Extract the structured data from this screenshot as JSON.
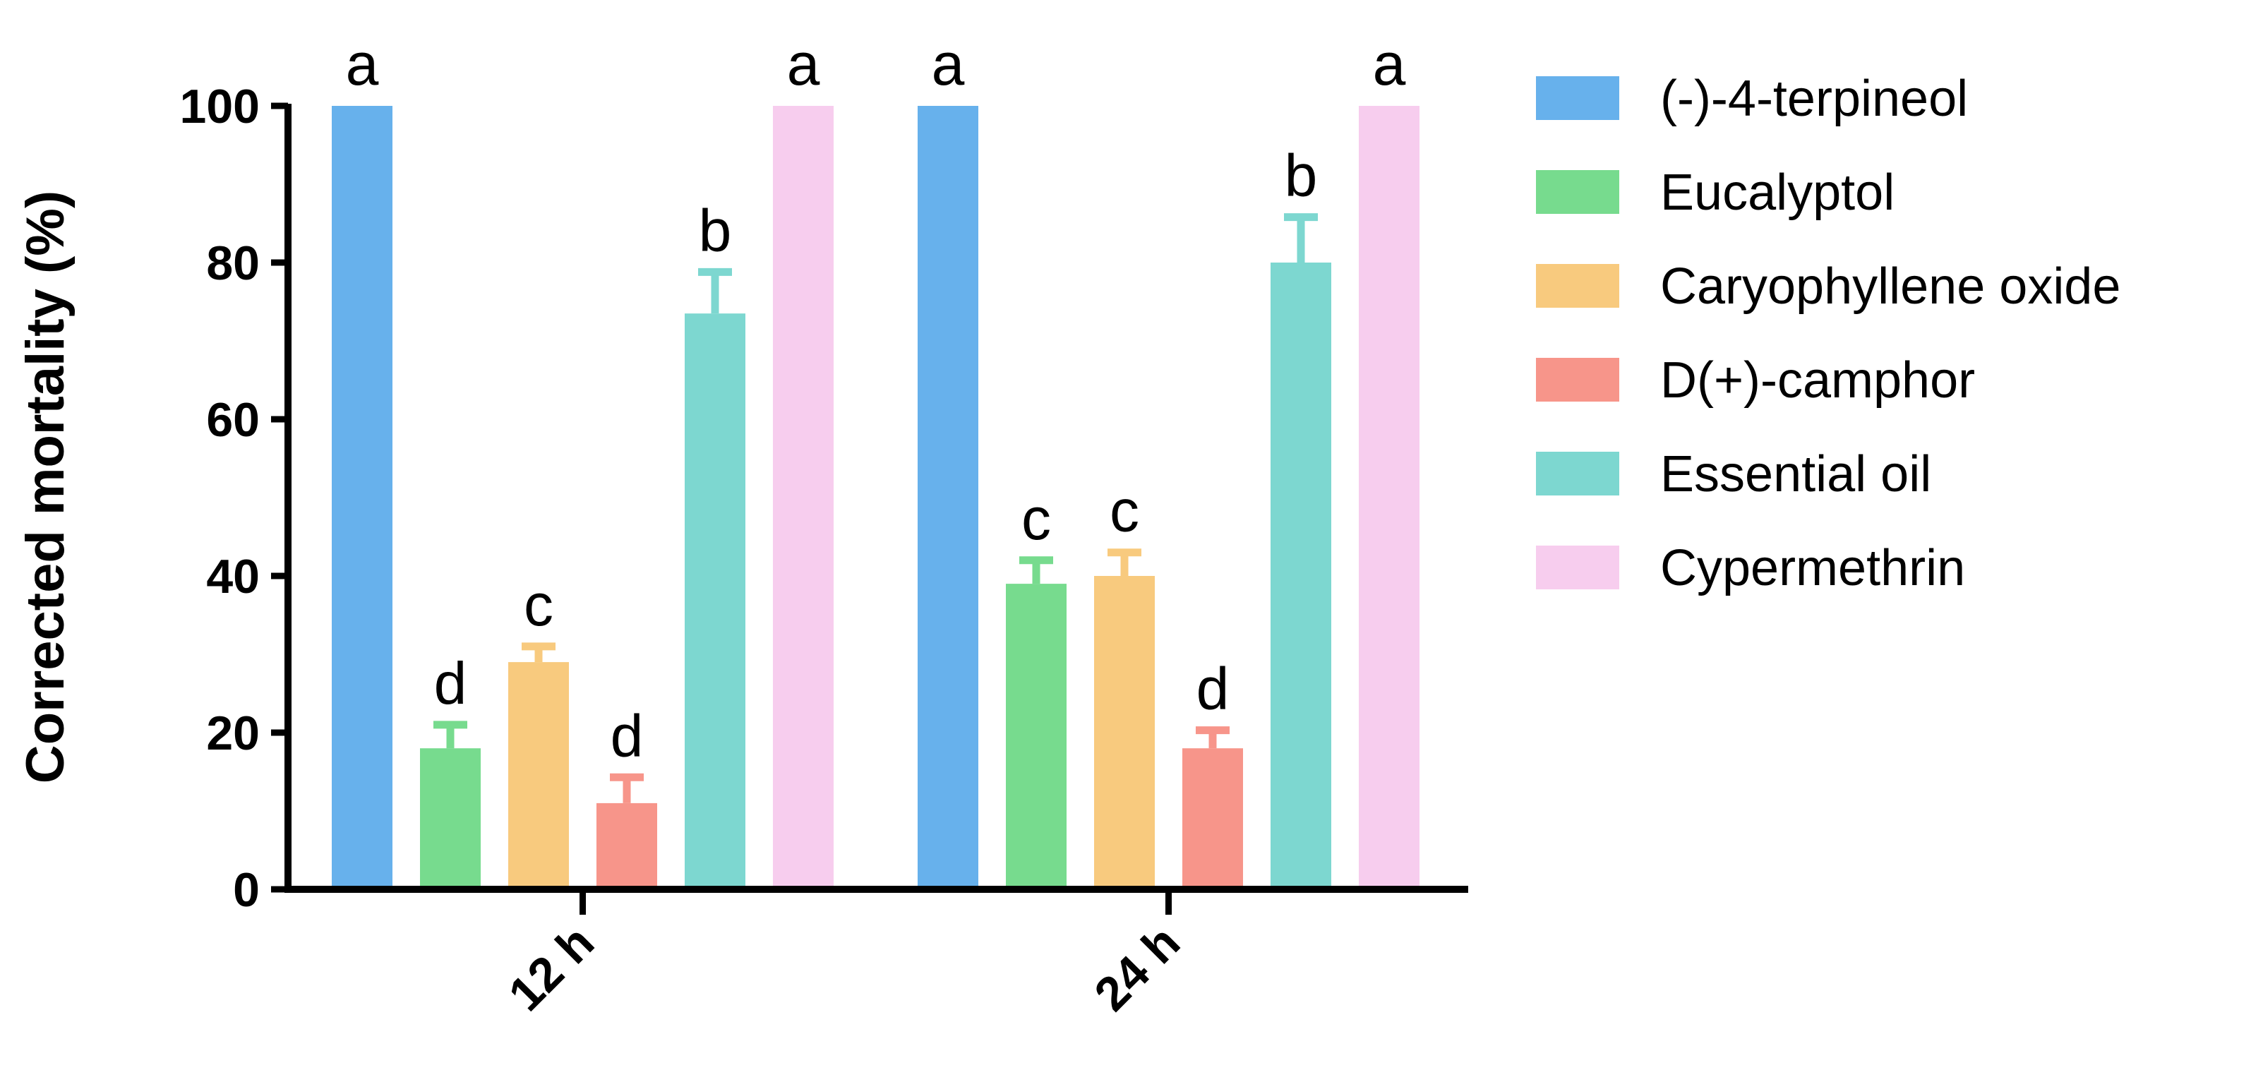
{
  "chart_data": {
    "type": "bar",
    "categories": [
      "12 h",
      "24 h"
    ],
    "ylabel": "Corrected mortality (%)",
    "xlabel": "",
    "ylim": [
      0,
      100
    ],
    "yticks": [
      0,
      20,
      40,
      60,
      80,
      100
    ],
    "legend_position": "right",
    "grid": false,
    "series": [
      {
        "name": "(-)-4-terpineol",
        "color": "#67b1ec",
        "values": [
          100,
          100
        ],
        "errors": [
          0,
          0
        ],
        "letters": [
          "a",
          "a"
        ]
      },
      {
        "name": "Eucalyptol",
        "color": "#77db8e",
        "values": [
          18,
          39
        ],
        "errors": [
          3,
          3
        ],
        "letters": [
          "d",
          "c"
        ]
      },
      {
        "name": "Caryophyllene oxide",
        "color": "#f8ca7e",
        "values": [
          29,
          40
        ],
        "errors": [
          2,
          3
        ],
        "letters": [
          "c",
          "c"
        ]
      },
      {
        "name": "D(+)-camphor",
        "color": "#f7958a",
        "values": [
          11,
          18
        ],
        "errors": [
          3.3,
          2.3
        ],
        "letters": [
          "d",
          "d"
        ]
      },
      {
        "name": "Essential oil",
        "color": "#7dd7d0",
        "values": [
          73.5,
          80
        ],
        "errors": [
          5.3,
          5.8
        ],
        "letters": [
          "b",
          "b"
        ]
      },
      {
        "name": "Cypermethrin",
        "color": "#f7cdee",
        "values": [
          100,
          100
        ],
        "errors": [
          0,
          0
        ],
        "letters": [
          "a",
          "a"
        ]
      }
    ]
  }
}
